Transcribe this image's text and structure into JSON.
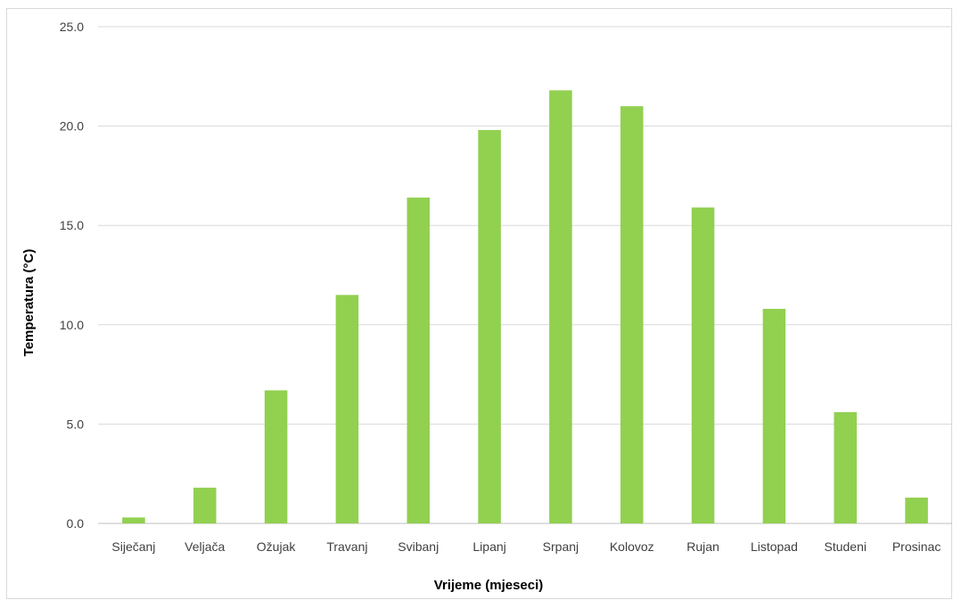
{
  "chart_data": {
    "type": "bar",
    "title": "",
    "xlabel": "Vrijeme (mjeseci)",
    "ylabel": "Temperatura (°C)",
    "categories": [
      "Siječanj",
      "Veljača",
      "Ožujak",
      "Travanj",
      "Svibanj",
      "Lipanj",
      "Srpanj",
      "Kolovoz",
      "Rujan",
      "Listopad",
      "Studeni",
      "Prosinac"
    ],
    "series": [
      {
        "values": [
          0.3,
          1.8,
          6.7,
          11.5,
          16.4,
          19.8,
          21.8,
          21.0,
          15.9,
          10.8,
          5.6,
          1.3
        ]
      }
    ],
    "ylim": [
      0,
      25
    ],
    "yticks": [
      "0.0",
      "5.0",
      "10.0",
      "15.0",
      "20.0",
      "25.0"
    ],
    "grid": true,
    "legend": "none",
    "colors": {
      "bar": "#92d050",
      "grid": "#d9d9d9"
    }
  }
}
